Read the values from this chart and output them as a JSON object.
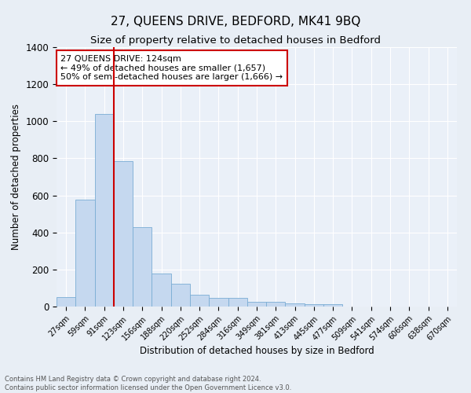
{
  "title": "27, QUEENS DRIVE, BEDFORD, MK41 9BQ",
  "subtitle": "Size of property relative to detached houses in Bedford",
  "xlabel": "Distribution of detached houses by size in Bedford",
  "ylabel": "Number of detached properties",
  "footnote1": "Contains HM Land Registry data © Crown copyright and database right 2024.",
  "footnote2": "Contains public sector information licensed under the Open Government Licence v3.0.",
  "bar_labels": [
    "27sqm",
    "59sqm",
    "91sqm",
    "123sqm",
    "156sqm",
    "188sqm",
    "220sqm",
    "252sqm",
    "284sqm",
    "316sqm",
    "349sqm",
    "381sqm",
    "413sqm",
    "445sqm",
    "477sqm",
    "509sqm",
    "541sqm",
    "574sqm",
    "606sqm",
    "638sqm",
    "670sqm"
  ],
  "bar_values": [
    50,
    578,
    1040,
    785,
    430,
    180,
    125,
    65,
    48,
    48,
    27,
    25,
    18,
    12,
    12,
    0,
    0,
    0,
    0,
    0,
    0
  ],
  "bar_color": "#c5d8ef",
  "bar_edge_color": "#7aadd4",
  "red_line_x": 2.5,
  "annotation_text": "27 QUEENS DRIVE: 124sqm\n← 49% of detached houses are smaller (1,657)\n50% of semi-detached houses are larger (1,666) →",
  "annotation_box_color": "#ffffff",
  "annotation_box_edge": "#cc0000",
  "ylim": [
    0,
    1400
  ],
  "yticks": [
    0,
    200,
    400,
    600,
    800,
    1000,
    1200,
    1400
  ],
  "bg_color": "#e8eef5",
  "plot_bg_color": "#eaf0f8",
  "grid_color": "#ffffff",
  "title_fontsize": 11,
  "subtitle_fontsize": 9.5
}
